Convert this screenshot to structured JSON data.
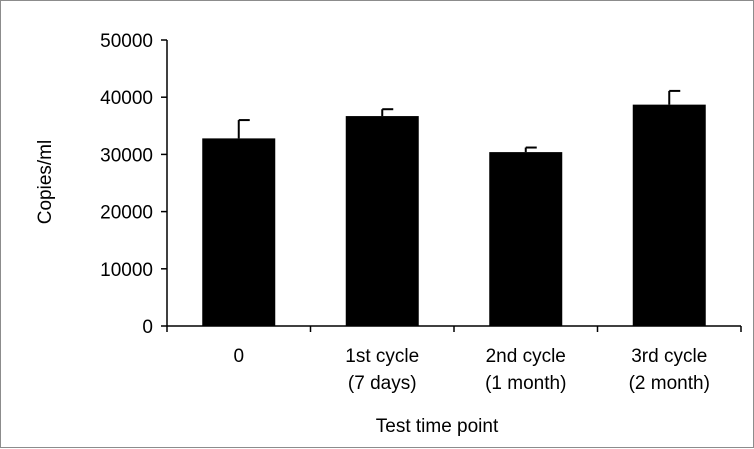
{
  "chart_data": {
    "type": "bar",
    "title": "",
    "xlabel": "Test time point",
    "ylabel": "Copies/ml",
    "ylim": [
      0,
      50000
    ],
    "yticks": [
      0,
      10000,
      20000,
      30000,
      40000,
      50000
    ],
    "ytick_labels": [
      "0",
      "10000",
      "20000",
      "30000",
      "40000",
      "50000"
    ],
    "categories": [
      [
        "0"
      ],
      [
        "1st cycle",
        "(7 days)"
      ],
      [
        "2nd cycle",
        "(1 month)"
      ],
      [
        "3rd cycle",
        "(2 month)"
      ]
    ],
    "values": [
      32800,
      36700,
      30400,
      38700
    ],
    "error_plus": [
      3200,
      1200,
      800,
      2400
    ],
    "bar_color": "#000000",
    "grid": false,
    "legend": "none"
  }
}
